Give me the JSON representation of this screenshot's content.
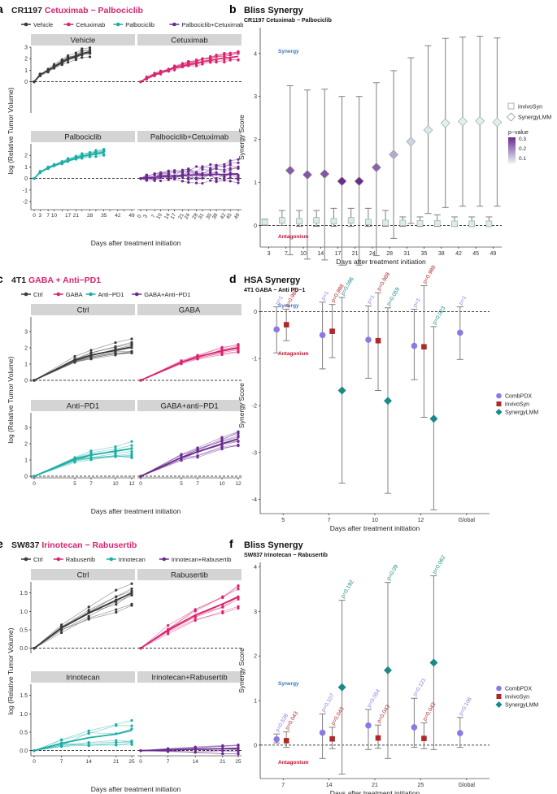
{
  "colors": {
    "vehicle": "#3a3a3a",
    "cetuximab": "#d9246f",
    "palbociclib": "#1aaea5",
    "combo": "#6a2b8f",
    "strip": "#d4d4d4",
    "synergy_text": "#3a78c2",
    "antagonism_text": "#c8102e",
    "comb_pdx": "#8a7ae8",
    "invivo_syn": "#b0282a",
    "synergy_lmm": "#1b8a86",
    "error_bar": "#808080"
  },
  "panels": [
    {
      "letter": "a",
      "title_black": "CR1197",
      "title_colored": "Cetuximab − Palbociclib",
      "legend": [
        "Vehicle",
        "Cetuximab",
        "Palbociclib",
        "Palbociclib+Cetuximab"
      ],
      "facets": [
        "Vehicle",
        "Cetuximab",
        "Palbociclib",
        "Palbociclib+Cetuximab"
      ],
      "xlabel": "Days after treatment initiation",
      "ylabel": "log (Relative Tumor Volume)"
    },
    {
      "letter": "b",
      "title": "Bliss Synergy",
      "subtitle": "CR1197 Cetuximab − Palbociclib",
      "xlabel": "Days after treatment initiation",
      "ylabel": "Synergy Score",
      "synergy": "Synergy",
      "antagonism": "Antagonism",
      "legend": [
        "invivoSyn",
        "SynergyLMM"
      ],
      "pvalue_label": "p−value",
      "pvalue_ticks": [
        "0.3",
        "0.2",
        "0.1"
      ]
    },
    {
      "letter": "c",
      "title_black": "4T1",
      "title_colored": "GABA + Anti−PD1",
      "legend": [
        "Ctrl",
        "GABA",
        "Anti−PD1",
        "GABA+Anti−PD1"
      ],
      "facets": [
        "Ctrl",
        "GABA",
        "Anti−PD1",
        "GABA+anti−PD1"
      ],
      "xlabel": "Days after treatment initiation",
      "ylabel": "log (Relative Tumor Volume)"
    },
    {
      "letter": "d",
      "title": "HSA Synergy",
      "subtitle": "4T1 GABA − Anti PD−1",
      "xlabel": "Days after treatment initiation",
      "ylabel": "Synergy Score",
      "synergy": "Synergy",
      "antagonism": "Antagonism",
      "legend": [
        "CombPDX",
        "invivoSyn",
        "SynergyLMM"
      ]
    },
    {
      "letter": "e",
      "title_black": "SW837",
      "title_colored": "Irinotecan − Rabusertib",
      "legend": [
        "Ctrl",
        "Rabusertib",
        "Irinotecan",
        "Irinotecan+Rabusertib"
      ],
      "facets": [
        "Ctrl",
        "Rabusertib",
        "Irinotecan",
        "Irinotecan+Rabusertib"
      ],
      "xlabel": "Days after treatment initiation",
      "ylabel": "log (Relative Tumor Volume)"
    },
    {
      "letter": "f",
      "title": "Bliss Synergy",
      "subtitle": "SW837 Irinotecan − Rabusertib",
      "xlabel": "Days after treatment initiation",
      "ylabel": "Synergy Score",
      "synergy": "Synergy",
      "antagonism": "Antagonism",
      "legend": [
        "CombPDX",
        "invivoSyn",
        "SynergyLMM"
      ]
    }
  ],
  "chart_data": [
    {
      "panel": "a",
      "type": "line",
      "x_ticks": [
        0,
        3,
        7,
        10,
        14,
        17,
        21,
        24,
        28,
        31,
        35,
        38,
        42,
        45,
        49
      ],
      "x_ticks_shown": [
        "0",
        "3",
        "7",
        "10",
        "17",
        "21",
        "28",
        "35",
        "42",
        "49"
      ],
      "x_ticks_shown_bottom": [
        "0",
        "3",
        "7",
        "10",
        "14",
        "17",
        "21",
        "24",
        "28",
        "31",
        "35",
        "38",
        "42",
        "45",
        "49"
      ],
      "ylim": [
        -2.7,
        3.0
      ],
      "y_ticks_top": [
        0,
        1,
        2,
        3
      ],
      "y_ticks_bottom": [
        -2,
        -1,
        0,
        1,
        2
      ],
      "reference_line": 0,
      "facets": [
        {
          "name": "Vehicle",
          "x": [
            0,
            3,
            7,
            10,
            14,
            17,
            21,
            24,
            28
          ],
          "mean": [
            0,
            0.6,
            1.0,
            1.3,
            1.7,
            2.0,
            2.2,
            2.45,
            2.6
          ],
          "x_end": 31,
          "spread": 0.45,
          "n": 8
        },
        {
          "name": "Cetuximab",
          "x": [
            0,
            3,
            7,
            10,
            14,
            17,
            21,
            24,
            28,
            31,
            35,
            38,
            42,
            45,
            49
          ],
          "mean": [
            0,
            0.3,
            0.6,
            0.8,
            1.0,
            1.2,
            1.35,
            1.5,
            1.6,
            1.75,
            1.85,
            1.95,
            2.05,
            2.1,
            2.2
          ],
          "spread": 0.5,
          "n": 8
        },
        {
          "name": "Palbociclib",
          "x": [
            0,
            3,
            7,
            10,
            14,
            17,
            21,
            24,
            28,
            31,
            35
          ],
          "mean": [
            0,
            0.55,
            0.9,
            1.1,
            1.35,
            1.55,
            1.75,
            1.9,
            2.05,
            2.15,
            2.25
          ],
          "spread": 0.35,
          "n": 8
        },
        {
          "name": "Palbociclib+Cetuximab",
          "x": [
            0,
            3,
            7,
            10,
            14,
            17,
            21,
            24,
            28,
            31,
            35,
            38,
            42,
            45,
            49
          ],
          "mean": [
            0,
            0.05,
            0.1,
            0.15,
            0.2,
            0.22,
            0.25,
            0.28,
            0.3,
            0.3,
            0.32,
            0.35,
            0.35,
            0.38,
            0.4
          ],
          "spread": 1.3,
          "n": 10
        }
      ]
    },
    {
      "panel": "b",
      "type": "scatter",
      "categories": [
        "3",
        "7",
        "10",
        "14",
        "17",
        "21",
        "24",
        "28",
        "31",
        "35",
        "38",
        "42",
        "45",
        "49"
      ],
      "ylim": [
        -0.5,
        4.6
      ],
      "y_ticks": [
        0,
        1,
        2,
        3,
        4
      ],
      "series": [
        {
          "name": "invivoSyn",
          "values": [
            0.08,
            0.12,
            0.1,
            0.12,
            0.1,
            0.12,
            0.08,
            0.06,
            0.06,
            0.05,
            0.05,
            0.04,
            0.04,
            0.04
          ],
          "lower": [
            0,
            0,
            -0.02,
            -0.02,
            -0.02,
            -0.02,
            -0.02,
            -0.02,
            -0.02,
            -0.02,
            -0.02,
            -0.02,
            -0.02,
            -0.02
          ],
          "upper": [
            0.15,
            0.35,
            0.35,
            0.35,
            0.4,
            0.4,
            0.4,
            0.35,
            0.2,
            0.2,
            0.25,
            0.2,
            0.2,
            0.2
          ]
        },
        {
          "name": "SynergyLMM",
          "values": [
            null,
            1.28,
            1.18,
            1.2,
            1.03,
            1.03,
            1.35,
            1.65,
            1.95,
            2.22,
            2.38,
            2.42,
            2.43,
            2.4
          ],
          "lower": [
            null,
            -0.68,
            -0.78,
            -0.8,
            -0.92,
            -0.92,
            -0.7,
            -0.3,
            0.05,
            0.28,
            0.42,
            0.45,
            0.45,
            0.45
          ],
          "upper": [
            null,
            3.25,
            3.15,
            3.17,
            3.0,
            3.0,
            3.32,
            3.6,
            3.9,
            4.18,
            4.35,
            4.38,
            4.4,
            4.36
          ],
          "pvalue": [
            null,
            0.23,
            0.24,
            0.24,
            0.3,
            0.3,
            0.22,
            0.12,
            0.06,
            0.03,
            0.02,
            0.02,
            0.02,
            0.02
          ]
        }
      ]
    },
    {
      "panel": "c",
      "type": "line",
      "x": [
        0,
        5,
        7,
        10,
        12
      ],
      "ylim": [
        -0.1,
        3.9
      ],
      "y_ticks": [
        0,
        1,
        2,
        3
      ],
      "reference_line": 0,
      "facets": [
        {
          "name": "Ctrl",
          "mean": [
            0,
            1.25,
            1.55,
            1.85,
            2.05
          ],
          "spread": 0.7,
          "n": 10
        },
        {
          "name": "GABA",
          "mean": [
            0,
            1.1,
            1.45,
            1.8,
            2.0
          ],
          "spread": 0.3,
          "n": 10
        },
        {
          "name": "Anti−PD1",
          "mean": [
            0,
            1.05,
            1.3,
            1.55,
            1.7
          ],
          "spread": 0.5,
          "n": 10
        },
        {
          "name": "GABA+anti−PD1",
          "mean": [
            0,
            1.15,
            1.5,
            2.0,
            2.3
          ],
          "spread": 0.6,
          "n": 10
        }
      ]
    },
    {
      "panel": "d",
      "type": "scatter",
      "categories": [
        "5",
        "7",
        "10",
        "12",
        "Global"
      ],
      "ylim": [
        -4.3,
        0.3
      ],
      "y_ticks": [
        0,
        -1,
        -2,
        -3,
        -4
      ],
      "series": [
        {
          "name": "CombPDX",
          "values": [
            -0.38,
            -0.5,
            -0.6,
            -0.73,
            -0.45
          ],
          "lower": [
            -0.88,
            -1.22,
            -1.42,
            -1.45,
            -1.02
          ],
          "upper": [
            0.1,
            0.2,
            0.12,
            0.05,
            0.1
          ],
          "labels": [
            "p=1",
            "p=1",
            "p=1",
            "p=1",
            "p=1"
          ]
        },
        {
          "name": "invivoSyn",
          "values": [
            -0.28,
            -0.42,
            -0.62,
            -0.75,
            null
          ],
          "lower": [
            -0.62,
            -0.98,
            -1.68,
            -2.25,
            null
          ],
          "upper": [
            0.05,
            0.15,
            0.4,
            0.55,
            null
          ],
          "labels": [
            "p=0.988",
            "p=0.988",
            "p=0.988",
            "p=0.988",
            null
          ]
        },
        {
          "name": "SynergyLMM",
          "values": [
            null,
            -1.68,
            -1.9,
            -2.28,
            null
          ],
          "lower": [
            null,
            -3.65,
            -3.87,
            -4.22,
            null
          ],
          "upper": [
            null,
            0.3,
            0.08,
            -0.32,
            null
          ],
          "labels": [
            null,
            "p=0.096",
            "p=0.059",
            "p=0.023",
            null
          ]
        }
      ]
    },
    {
      "panel": "e",
      "type": "line",
      "x": [
        0,
        7,
        14,
        21,
        25
      ],
      "ylim": [
        -0.14,
        1.8
      ],
      "y_ticks_top": [
        0.0,
        0.5,
        1.0,
        1.5
      ],
      "y_ticks_bottom": [
        0.0,
        0.5,
        1.0,
        1.5
      ],
      "reference_line": 0,
      "facets": [
        {
          "name": "Ctrl",
          "mean": [
            0,
            0.55,
            0.95,
            1.3,
            1.5
          ],
          "spread": 0.35,
          "n": 8
        },
        {
          "name": "Rabusertib",
          "mean": [
            0,
            0.5,
            0.9,
            1.2,
            1.4
          ],
          "spread": 0.3,
          "n": 8
        },
        {
          "name": "Irinotecan",
          "mean": [
            0,
            0.2,
            0.35,
            0.45,
            0.55
          ],
          "spread": 0.45,
          "n": 8
        },
        {
          "name": "Irinotecan+Rabusertib",
          "mean": [
            0,
            0.02,
            0.04,
            0.05,
            0.06
          ],
          "spread": 0.15,
          "n": 8
        }
      ]
    },
    {
      "panel": "f",
      "type": "scatter",
      "categories": [
        "7",
        "14",
        "21",
        "25",
        "Global"
      ],
      "ylim": [
        -0.75,
        4.1
      ],
      "y_ticks": [
        0,
        1,
        2,
        3,
        4
      ],
      "series": [
        {
          "name": "CombPDX",
          "values": [
            0.13,
            0.28,
            0.44,
            0.4,
            0.27
          ],
          "lower": [
            0.05,
            -0.3,
            -0.1,
            -0.05,
            -0.05
          ],
          "upper": [
            0.25,
            0.7,
            0.8,
            1.05,
            0.62
          ],
          "labels": [
            "p=0.538",
            "p=0.107",
            "p=0.054",
            "p=0.121",
            "p=0.106"
          ]
        },
        {
          "name": "invivoSyn",
          "values": [
            0.1,
            0.14,
            0.16,
            0.15,
            null
          ],
          "lower": [
            -0.05,
            -0.08,
            -0.07,
            -0.08,
            null
          ],
          "upper": [
            0.3,
            0.4,
            0.45,
            0.5,
            null
          ],
          "labels": [
            "p=0.043",
            "p=0.043",
            "p=0.043",
            "p=0.043",
            null
          ]
        },
        {
          "name": "SynergyLMM",
          "values": [
            null,
            1.3,
            1.68,
            1.85,
            null
          ],
          "lower": [
            null,
            -0.65,
            -0.3,
            -0.1,
            null
          ],
          "upper": [
            null,
            3.25,
            3.65,
            3.8,
            null
          ],
          "labels": [
            null,
            "p=0.192",
            "p=0.09",
            "p=0.062",
            null
          ]
        }
      ]
    }
  ]
}
